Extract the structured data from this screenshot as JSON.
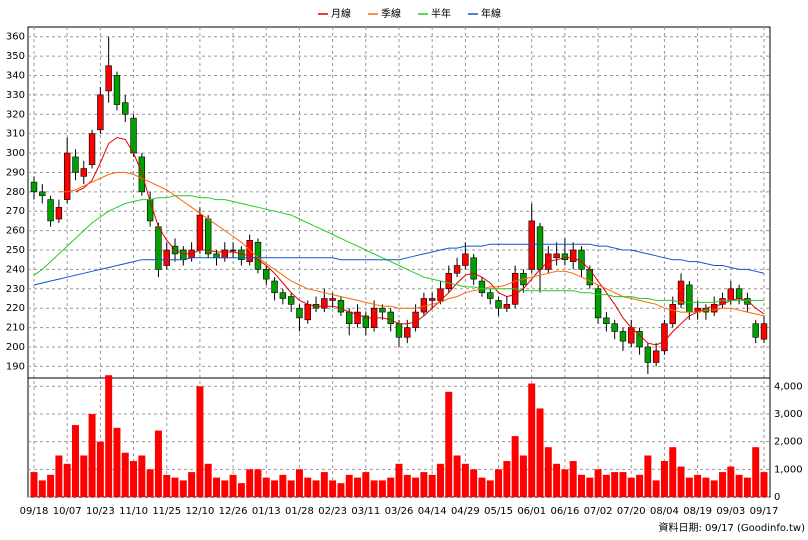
{
  "chart_data": [
    {
      "type": "candlestick",
      "categories": [
        "09/18",
        null,
        null,
        null,
        "10/07",
        null,
        null,
        null,
        "10/23",
        null,
        null,
        null,
        "11/10",
        null,
        null,
        null,
        "11/25",
        null,
        null,
        null,
        "12/10",
        null,
        null,
        null,
        "12/26",
        null,
        null,
        null,
        "01/13",
        null,
        null,
        null,
        "01/28",
        null,
        null,
        null,
        "02/23",
        null,
        null,
        null,
        "03/11",
        null,
        null,
        null,
        "03/26",
        null,
        null,
        null,
        "04/14",
        null,
        null,
        null,
        "04/29",
        null,
        null,
        null,
        "05/15",
        null,
        null,
        null,
        "06/01",
        null,
        null,
        null,
        "06/16",
        null,
        null,
        null,
        "07/02",
        null,
        null,
        null,
        "07/20",
        null,
        null,
        null,
        "08/04",
        null,
        null,
        null,
        "08/19",
        null,
        null,
        null,
        "09/03",
        null,
        null,
        null,
        "09/17"
      ],
      "ohlc": [
        [
          285,
          288,
          276,
          280
        ],
        [
          280,
          284,
          274,
          278
        ],
        [
          276,
          278,
          262,
          265
        ],
        [
          266,
          276,
          264,
          272
        ],
        [
          276,
          308,
          274,
          300
        ],
        [
          298,
          302,
          286,
          290
        ],
        [
          288,
          296,
          284,
          292
        ],
        [
          294,
          312,
          292,
          310
        ],
        [
          312,
          334,
          310,
          330
        ],
        [
          332,
          360,
          326,
          345
        ],
        [
          340,
          342,
          322,
          325
        ],
        [
          326,
          330,
          316,
          320
        ],
        [
          318,
          320,
          298,
          300
        ],
        [
          298,
          300,
          278,
          280
        ],
        [
          276,
          280,
          262,
          265
        ],
        [
          262,
          264,
          236,
          240
        ],
        [
          242,
          254,
          240,
          250
        ],
        [
          252,
          256,
          244,
          248
        ],
        [
          250,
          252,
          242,
          245
        ],
        [
          246,
          254,
          244,
          250
        ],
        [
          250,
          272,
          248,
          268
        ],
        [
          266,
          268,
          246,
          248
        ],
        [
          248,
          250,
          242,
          246
        ],
        [
          246,
          254,
          244,
          250
        ],
        [
          250,
          254,
          246,
          250
        ],
        [
          250,
          252,
          242,
          245
        ],
        [
          244,
          258,
          242,
          255
        ],
        [
          254,
          256,
          238,
          240
        ],
        [
          240,
          242,
          232,
          235
        ],
        [
          234,
          236,
          224,
          228
        ],
        [
          228,
          230,
          222,
          225
        ],
        [
          226,
          228,
          218,
          222
        ],
        [
          220,
          222,
          208,
          215
        ],
        [
          214,
          224,
          212,
          222
        ],
        [
          222,
          226,
          218,
          220
        ],
        [
          220,
          230,
          218,
          225
        ],
        [
          224,
          228,
          220,
          225
        ],
        [
          224,
          226,
          216,
          218
        ],
        [
          218,
          220,
          206,
          212
        ],
        [
          212,
          222,
          210,
          218
        ],
        [
          216,
          218,
          206,
          210
        ],
        [
          210,
          224,
          208,
          220
        ],
        [
          220,
          222,
          214,
          218
        ],
        [
          218,
          220,
          208,
          212
        ],
        [
          212,
          214,
          200,
          205
        ],
        [
          205,
          214,
          202,
          210
        ],
        [
          210,
          222,
          208,
          218
        ],
        [
          218,
          228,
          216,
          225
        ],
        [
          224,
          228,
          220,
          225
        ],
        [
          224,
          234,
          222,
          230
        ],
        [
          230,
          242,
          228,
          238
        ],
        [
          238,
          246,
          236,
          242
        ],
        [
          242,
          254,
          240,
          248
        ],
        [
          246,
          248,
          232,
          235
        ],
        [
          234,
          236,
          226,
          228
        ],
        [
          228,
          230,
          222,
          225
        ],
        [
          224,
          226,
          216,
          220
        ],
        [
          220,
          226,
          218,
          222
        ],
        [
          222,
          242,
          220,
          238
        ],
        [
          238,
          240,
          228,
          232
        ],
        [
          240,
          274,
          238,
          265
        ],
        [
          262,
          264,
          228,
          240
        ],
        [
          240,
          252,
          238,
          248
        ],
        [
          246,
          254,
          242,
          248
        ],
        [
          248,
          256,
          242,
          245
        ],
        [
          244,
          254,
          240,
          250
        ],
        [
          250,
          252,
          236,
          240
        ],
        [
          240,
          242,
          230,
          232
        ],
        [
          230,
          232,
          212,
          215
        ],
        [
          215,
          218,
          208,
          212
        ],
        [
          212,
          214,
          204,
          208
        ],
        [
          208,
          210,
          198,
          203
        ],
        [
          202,
          214,
          200,
          210
        ],
        [
          208,
          210,
          196,
          200
        ],
        [
          200,
          202,
          186,
          192
        ],
        [
          192,
          202,
          190,
          198
        ],
        [
          198,
          214,
          196,
          212
        ],
        [
          212,
          226,
          210,
          222
        ],
        [
          222,
          238,
          220,
          234
        ],
        [
          232,
          234,
          214,
          218
        ],
        [
          218,
          224,
          214,
          220
        ],
        [
          220,
          222,
          214,
          218
        ],
        [
          218,
          226,
          216,
          222
        ],
        [
          222,
          228,
          220,
          225
        ],
        [
          224,
          234,
          222,
          230
        ],
        [
          230,
          232,
          222,
          225
        ],
        [
          225,
          228,
          218,
          222
        ],
        [
          212,
          214,
          202,
          205
        ],
        [
          204,
          216,
          202,
          212
        ]
      ],
      "up_color": "#ff0000",
      "down_color": "#00a000",
      "series": [
        {
          "name": "月線",
          "color": "#dd0000",
          "values": [
            null,
            null,
            null,
            null,
            null,
            280,
            282,
            286,
            295,
            305,
            308,
            307,
            300,
            290,
            275,
            262,
            255,
            250,
            248,
            248,
            250,
            250,
            249,
            249,
            249,
            248,
            247,
            245,
            242,
            238,
            233,
            228,
            224,
            222,
            221,
            221,
            221,
            220,
            218,
            217,
            215,
            215,
            215,
            214,
            212,
            212,
            213,
            216,
            220,
            224,
            228,
            233,
            237,
            238,
            236,
            233,
            228,
            226,
            227,
            230,
            235,
            240,
            244,
            245,
            246,
            246,
            244,
            240,
            234,
            228,
            222,
            215,
            210,
            206,
            202,
            201,
            203,
            208,
            212,
            216,
            218,
            220,
            221,
            222,
            224,
            225,
            224,
            220,
            217
          ]
        },
        {
          "name": "季線",
          "color": "#ff6600",
          "values": [
            null,
            null,
            null,
            280,
            280,
            281,
            283,
            285,
            287,
            289,
            290,
            290,
            289,
            287,
            285,
            283,
            281,
            278,
            275,
            272,
            269,
            266,
            263,
            260,
            257,
            254,
            250,
            246,
            243,
            240,
            237,
            234,
            232,
            230,
            229,
            228,
            227,
            226,
            225,
            224,
            223,
            222,
            221,
            221,
            220,
            220,
            220,
            221,
            222,
            223,
            225,
            226,
            228,
            229,
            230,
            231,
            231,
            232,
            234,
            235,
            236,
            237,
            238,
            239,
            239,
            238,
            236,
            234,
            232,
            230,
            228,
            226,
            225,
            224,
            223,
            222,
            220,
            219,
            218,
            218,
            218,
            219,
            219,
            220,
            220,
            219,
            218,
            217,
            216
          ]
        },
        {
          "name": "半年",
          "color": "#22cc22",
          "values": [
            237,
            240,
            244,
            248,
            252,
            256,
            260,
            264,
            267,
            270,
            272,
            274,
            275,
            276,
            276,
            277,
            277,
            278,
            278,
            278,
            277,
            277,
            276,
            276,
            275,
            274,
            273,
            272,
            271,
            270,
            269,
            268,
            266,
            264,
            262,
            260,
            258,
            256,
            254,
            252,
            250,
            248,
            246,
            244,
            242,
            240,
            238,
            236,
            235,
            234,
            233,
            232,
            231,
            231,
            230,
            230,
            230,
            230,
            230,
            229,
            229,
            229,
            229,
            229,
            229,
            229,
            228,
            228,
            227,
            227,
            226,
            226,
            226,
            225,
            225,
            224,
            224,
            224,
            223,
            223,
            223,
            223,
            223,
            224,
            224,
            224,
            224,
            224,
            224
          ]
        },
        {
          "name": "年線",
          "color": "#1155cc",
          "values": [
            232,
            233,
            234,
            235,
            236,
            237,
            238,
            239,
            240,
            241,
            242,
            243,
            244,
            245,
            245,
            245,
            245,
            245,
            245,
            246,
            246,
            246,
            246,
            246,
            246,
            246,
            246,
            246,
            246,
            246,
            246,
            246,
            246,
            246,
            246,
            246,
            246,
            245,
            245,
            245,
            245,
            245,
            245,
            245,
            245,
            246,
            247,
            248,
            249,
            250,
            251,
            251,
            252,
            252,
            252,
            253,
            253,
            253,
            253,
            253,
            253,
            253,
            253,
            253,
            253,
            253,
            253,
            253,
            252,
            252,
            251,
            250,
            250,
            249,
            248,
            247,
            246,
            245,
            245,
            244,
            244,
            243,
            242,
            242,
            241,
            240,
            240,
            239,
            238
          ]
        }
      ],
      "ylim": [
        184,
        365
      ],
      "yticks": [
        190,
        200,
        210,
        220,
        230,
        240,
        250,
        260,
        270,
        280,
        290,
        300,
        310,
        320,
        330,
        340,
        350,
        360
      ],
      "grid": true
    },
    {
      "type": "bar",
      "color": "#ff0000",
      "values": [
        900,
        600,
        800,
        1500,
        1200,
        2600,
        1500,
        3000,
        2000,
        4400,
        2500,
        1600,
        1300,
        1500,
        1000,
        2400,
        800,
        700,
        600,
        900,
        4000,
        1200,
        700,
        600,
        800,
        500,
        1000,
        1000,
        700,
        600,
        800,
        600,
        1000,
        700,
        600,
        900,
        600,
        500,
        800,
        700,
        900,
        600,
        600,
        700,
        1200,
        800,
        700,
        900,
        800,
        1200,
        3800,
        1500,
        1200,
        1000,
        700,
        600,
        1000,
        1300,
        2200,
        1500,
        4100,
        3200,
        1800,
        1200,
        1000,
        1300,
        800,
        700,
        1000,
        800,
        900,
        900,
        700,
        800,
        1500,
        600,
        1300,
        1800,
        1100,
        700,
        800,
        700,
        600,
        900,
        1100,
        800,
        700,
        1800,
        900
      ],
      "ylim": [
        0,
        4300
      ],
      "yticks": [
        0,
        {
          "value": 1000,
          "label": "1,000"
        },
        {
          "value": 2000,
          "label": "2,000"
        },
        {
          "value": 3000,
          "label": "3,000"
        },
        {
          "value": 4000,
          "label": "4,000"
        }
      ],
      "grid": true
    }
  ],
  "source": "資料日期: 09/17 (Goodinfo.tw)"
}
